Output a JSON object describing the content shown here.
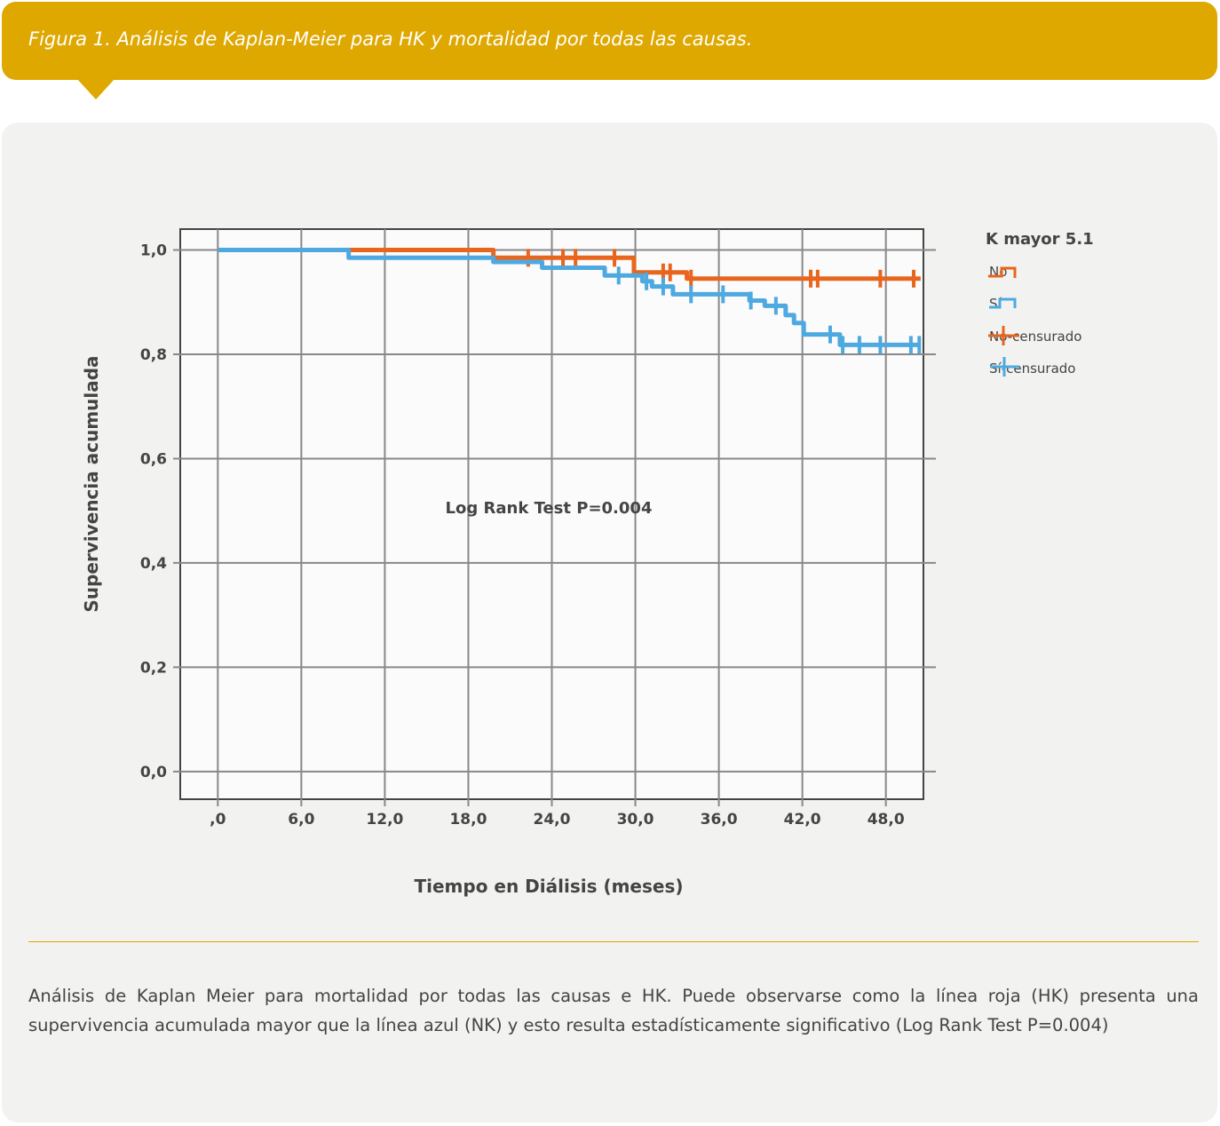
{
  "header": {
    "title": "Figura 1. Análisis de Kaplan-Meier para HK y mortalidad por todas las causas."
  },
  "caption": "Análisis de Kaplan Meier para mortalidad por todas las causas e HK. Puede observarse como la línea roja (HK) presenta una supervivencia acumulada mayor que la línea azul (NK) y esto resulta estadísticamente significativo (Log Rank Test P=0.004)",
  "colors": {
    "no": "#e8651e",
    "si": "#4ea9e0",
    "accent": "#dea800"
  },
  "chart_data": {
    "type": "line",
    "subtype": "kaplan-meier step",
    "xlabel": "Tiempo en Diálisis (meses)",
    "ylabel": "Supervivencia acumulada",
    "xlim": [
      -2.7,
      50.7
    ],
    "ylim": [
      -0.053,
      1.04
    ],
    "xticks": [
      0,
      6,
      12,
      18,
      24,
      30,
      36,
      42,
      48
    ],
    "xtick_labels": [
      ",0",
      "6,0",
      "12,0",
      "18,0",
      "24,0",
      "30,0",
      "36,0",
      "42,0",
      "48,0"
    ],
    "yticks": [
      0,
      0.2,
      0.4,
      0.6,
      0.8,
      1.0
    ],
    "ytick_labels": [
      "0,0",
      "0,2",
      "0,4",
      "0,6",
      "0,8",
      "1,0"
    ],
    "grid": true,
    "annotation": "Log Rank Test P=0.004",
    "legend": {
      "title": "K mayor 5.1",
      "position": "right",
      "entries": [
        "No",
        "Sí",
        "No-censurado",
        "Sí-censurado"
      ]
    },
    "series": [
      {
        "name": "No",
        "color": "#e8651e",
        "end": 50.5,
        "steps": [
          [
            0,
            1.0
          ],
          [
            19.8,
            0.985
          ],
          [
            29.9,
            0.957
          ],
          [
            33.7,
            0.945
          ]
        ],
        "censored": [
          22.3,
          24.8,
          25.7,
          28.5,
          32.0,
          32.5,
          34.0,
          42.6,
          43.1,
          47.6,
          50.0
        ]
      },
      {
        "name": "Sí",
        "color": "#4ea9e0",
        "end": 50.5,
        "steps": [
          [
            0,
            1.0
          ],
          [
            9.4,
            0.985
          ],
          [
            19.8,
            0.977
          ],
          [
            23.3,
            0.966
          ],
          [
            27.8,
            0.951
          ],
          [
            30.5,
            0.94
          ],
          [
            31.2,
            0.93
          ],
          [
            32.7,
            0.915
          ],
          [
            38.2,
            0.903
          ],
          [
            39.3,
            0.893
          ],
          [
            40.8,
            0.875
          ],
          [
            41.4,
            0.86
          ],
          [
            42.1,
            0.838
          ],
          [
            44.7,
            0.818
          ]
        ],
        "censored": [
          28.8,
          30.8,
          32.0,
          34.0,
          36.3,
          38.3,
          40.1,
          44.0,
          44.9,
          46.1,
          47.6,
          49.8,
          50.4
        ]
      }
    ]
  }
}
